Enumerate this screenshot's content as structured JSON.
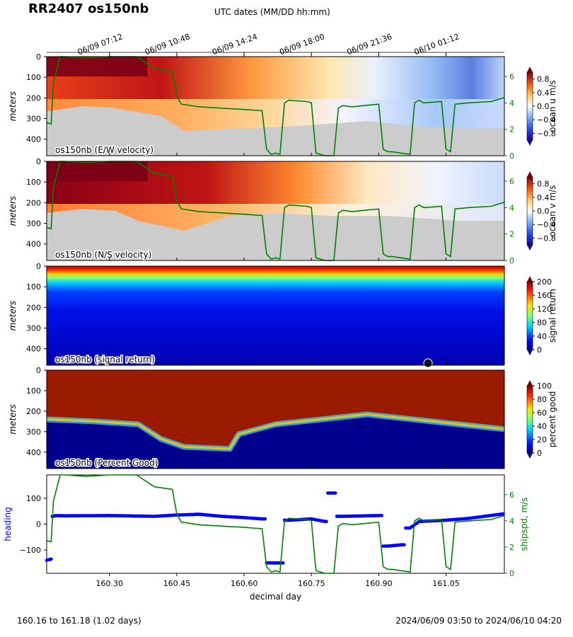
{
  "title": "RR2407 os150nb",
  "utc_label": "UTC dates (MM/DD hh:mm)",
  "footer_left": "160.16 to 161.18 (1.02 days)",
  "footer_right": "2024/06/09 03:50 to 2024/06/10 04:20",
  "chart_data": [
    {
      "type": "heatmap",
      "panel_label": "os150nb (E/W velocity)",
      "ylabel": "meters",
      "colorbar_label": "ocean u m/s",
      "colorbar_ticks": [
        "0.8",
        "0.4",
        "0.0",
        "−0.4",
        "−0.8"
      ],
      "colormap": "diverging-blue-white-red",
      "right_axis_ticks": [
        "6",
        "4",
        "2",
        "0"
      ],
      "yticks": [
        "0",
        "100",
        "200",
        "300",
        "400"
      ],
      "xlim": [
        160.16,
        161.18
      ],
      "ylim": [
        0,
        480
      ]
    },
    {
      "type": "heatmap",
      "panel_label": "os150nb (N/S velocity)",
      "ylabel": "meters",
      "colorbar_label": "ocean v m/s",
      "colorbar_ticks": [
        "0.8",
        "0.4",
        "0.0",
        "−0.4",
        "−0.8"
      ],
      "colormap": "diverging-blue-white-red",
      "right_axis_ticks": [
        "6",
        "4",
        "2",
        "0"
      ],
      "yticks": [
        "0",
        "100",
        "200",
        "300",
        "400"
      ],
      "xlim": [
        160.16,
        161.18
      ],
      "ylim": [
        0,
        480
      ]
    },
    {
      "type": "heatmap",
      "panel_label": "os150nb (signal return)",
      "ylabel": "meters",
      "colorbar_label": "signal return",
      "colorbar_ticks": [
        "200",
        "160",
        "120",
        "80",
        "40",
        "0"
      ],
      "colormap": "jet",
      "yticks": [
        "0",
        "100",
        "200",
        "300",
        "400"
      ],
      "xlim": [
        160.16,
        161.18
      ],
      "ylim": [
        0,
        480
      ]
    },
    {
      "type": "heatmap",
      "panel_label": "os150nb (Percent Good)",
      "ylabel": "meters",
      "colorbar_label": "percent good",
      "colorbar_ticks": [
        "100",
        "80",
        "60",
        "40",
        "20",
        "0"
      ],
      "colormap": "jet",
      "yticks": [
        "0",
        "100",
        "200",
        "300",
        "400"
      ],
      "xlim": [
        160.16,
        161.18
      ],
      "ylim": [
        0,
        480
      ]
    },
    {
      "type": "scatter",
      "ylabel_left": "heading",
      "ylabel_right": "shipspd, m/s",
      "xlabel": "decimal day",
      "xticks": [
        "160.30",
        "160.45",
        "160.60",
        "160.75",
        "160.90",
        "161.05"
      ],
      "xtick_values": [
        160.3,
        160.45,
        160.6,
        160.75,
        160.9,
        161.05
      ],
      "yticks_left": [
        "100",
        "0",
        "−100"
      ],
      "yticks_right": [
        "6",
        "4",
        "2",
        "0"
      ],
      "xlim": [
        160.16,
        161.18
      ],
      "ylim_left": [
        -190,
        190
      ],
      "ylim_right": [
        0,
        7.5
      ],
      "heading_color": "#0000ff",
      "speed_color": "#008000",
      "series": [
        {
          "name": "heading",
          "x": [
            160.16,
            160.17,
            160.175,
            160.18,
            160.2,
            160.3,
            160.4,
            160.45,
            160.5,
            160.55,
            160.6,
            160.64,
            160.66,
            160.68,
            160.7,
            160.75,
            160.78,
            160.79,
            160.82,
            160.9,
            160.92,
            160.95,
            160.97,
            160.99,
            161.05,
            161.1,
            161.18
          ],
          "y": [
            -140,
            -135,
            30,
            33,
            32,
            33,
            30,
            35,
            38,
            30,
            25,
            20,
            -150,
            -150,
            15,
            20,
            10,
            120,
            30,
            33,
            -85,
            -80,
            -15,
            10,
            15,
            22,
            40
          ]
        },
        {
          "name": "shipspd",
          "x": [
            160.16,
            160.17,
            160.175,
            160.19,
            160.2,
            160.25,
            160.3,
            160.36,
            160.4,
            160.44,
            160.45,
            160.46,
            160.5,
            160.55,
            160.6,
            160.64,
            160.65,
            160.66,
            160.67,
            160.68,
            160.69,
            160.7,
            160.74,
            160.75,
            160.76,
            160.78,
            160.79,
            160.8,
            160.81,
            160.82,
            160.84,
            160.9,
            160.91,
            160.92,
            160.93,
            160.95,
            160.97,
            160.98,
            160.99,
            161.0,
            161.04,
            161.05,
            161.06,
            161.07,
            161.1,
            161.15,
            161.18
          ],
          "y": [
            2.5,
            2.4,
            5.5,
            7.6,
            7.6,
            7.4,
            7.5,
            7.6,
            6.6,
            6.4,
            4.5,
            3.9,
            3.7,
            3.6,
            3.5,
            3.4,
            0.5,
            0.1,
            0.2,
            0.1,
            4.0,
            4.2,
            4.1,
            4.0,
            0.2,
            0.0,
            0.0,
            0.0,
            3.6,
            3.8,
            3.7,
            3.9,
            0.5,
            0.3,
            0.3,
            0.2,
            0.1,
            4.0,
            4.2,
            4.0,
            4.1,
            0.5,
            0.3,
            3.9,
            4.0,
            4.1,
            4.4
          ]
        }
      ]
    }
  ],
  "utc_ticks": [
    "06/09 07:12",
    "06/09 10:48",
    "06/09 14:24",
    "06/09 18:00",
    "06/09 21:36",
    "06/10 01:12"
  ],
  "utc_tick_values": [
    160.3,
    160.45,
    160.6,
    160.75,
    160.9,
    161.05
  ]
}
